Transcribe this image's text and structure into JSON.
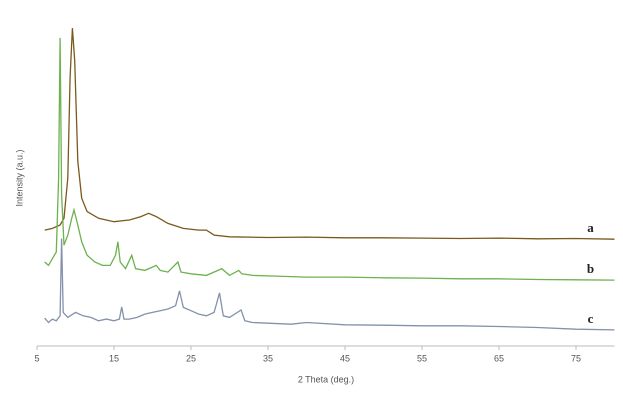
{
  "chart_data": {
    "type": "line",
    "x_label": "2 Theta (deg.)",
    "y_label": "Intensity (a.u.)",
    "xlim": [
      5,
      80
    ],
    "xticks": [
      5,
      15,
      25,
      35,
      45,
      55,
      65,
      75
    ],
    "ylim": [
      0,
      100
    ],
    "series": [
      {
        "name": "a",
        "color": "#7a5a1c",
        "x": [
          6,
          7,
          8,
          8.5,
          9,
          9.3,
          9.6,
          9.9,
          10.3,
          10.8,
          11.5,
          13,
          15,
          17,
          18.5,
          19.5,
          20.5,
          22,
          24,
          26,
          27,
          28,
          30,
          35,
          40,
          45,
          50,
          55,
          60,
          65,
          70,
          75,
          80
        ],
        "values": [
          34.5,
          35,
          36,
          38,
          50,
          80,
          94.6,
          85,
          55,
          44,
          40,
          38,
          37,
          37.5,
          38.5,
          39.5,
          38.5,
          36.5,
          35,
          34.5,
          34.5,
          33,
          32.5,
          32.3,
          32.4,
          32.2,
          32.2,
          32.1,
          32,
          32.1,
          31.9,
          32,
          31.8
        ]
      },
      {
        "name": "b",
        "color": "#6cb24e",
        "x": [
          6,
          6.5,
          7,
          7.5,
          7.8,
          8,
          8.2,
          8.5,
          9,
          9.5,
          9.8,
          10.2,
          10.8,
          11.5,
          12.5,
          13.5,
          14.5,
          15.2,
          15.5,
          15.8,
          16.5,
          17.3,
          17.8,
          19,
          20.5,
          21,
          22,
          23.3,
          23.7,
          25,
          27,
          28.5,
          29,
          30,
          31.2,
          31.6,
          33,
          36,
          40,
          45,
          50,
          55,
          60,
          65,
          70,
          75,
          80
        ],
        "values": [
          25,
          24,
          26,
          28,
          50,
          91.7,
          45,
          30,
          33,
          38,
          40.5,
          37,
          31,
          27,
          25,
          24,
          24,
          27,
          31,
          25,
          23,
          27,
          23,
          22.5,
          24,
          22.5,
          22,
          25,
          22,
          21.5,
          21,
          22.5,
          23,
          21,
          22.5,
          21.5,
          21,
          20.8,
          20.5,
          20.5,
          20.3,
          20.2,
          20,
          20,
          19.8,
          19.7,
          19.6
        ]
      },
      {
        "name": "c",
        "color": "#8292aa",
        "x": [
          6,
          6.5,
          7,
          7.5,
          8,
          8.2,
          8.4,
          9,
          10,
          11,
          12,
          13,
          14,
          15,
          15.7,
          16,
          16.3,
          17,
          18,
          19,
          20,
          21,
          22,
          23,
          23.5,
          24,
          25,
          26,
          27,
          28,
          28.7,
          29.2,
          30,
          31.5,
          32,
          33,
          35,
          38,
          40,
          45,
          50,
          55,
          60,
          65,
          70,
          75,
          80
        ],
        "values": [
          8.3,
          7,
          8,
          7.5,
          9,
          32,
          10,
          8.5,
          10,
          9,
          8.5,
          7.5,
          8,
          7.5,
          8,
          11.6,
          8,
          8,
          8.5,
          9.5,
          10,
          10.5,
          11,
          12,
          16.4,
          11.5,
          10.5,
          9.5,
          9,
          10,
          15.8,
          9,
          8.5,
          10.7,
          7.5,
          7,
          6.8,
          6.5,
          7,
          6.3,
          6.2,
          6,
          6,
          5.8,
          5.5,
          5,
          4.8
        ]
      }
    ]
  }
}
